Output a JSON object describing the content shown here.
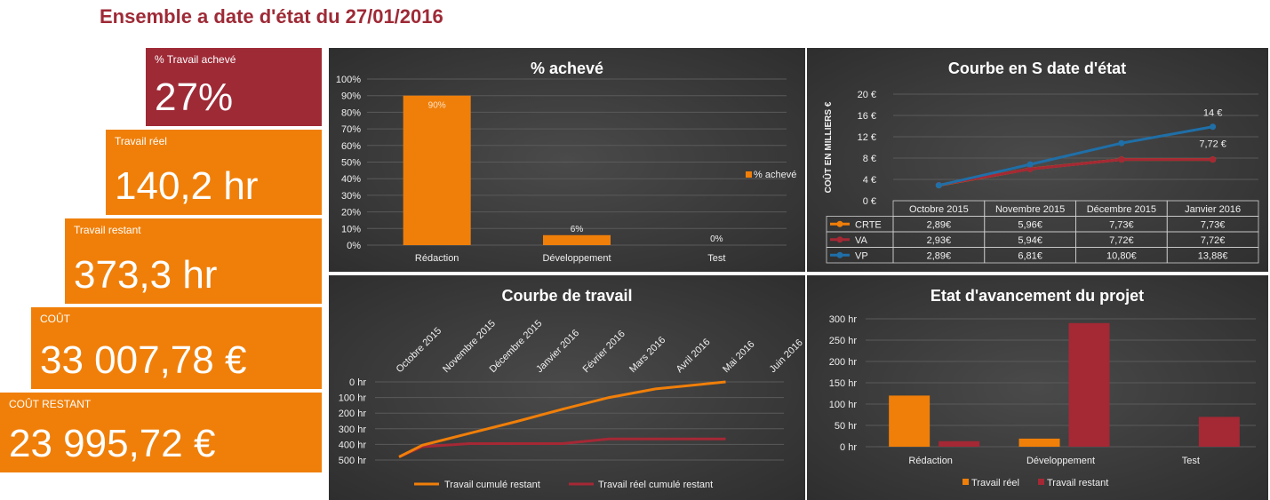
{
  "page_title": "Ensemble a date d'état du 27/01/2016",
  "kpis": [
    {
      "label": "% Travail achevé",
      "value": "27%"
    },
    {
      "label": "Travail réel",
      "value": "140,2 hr"
    },
    {
      "label": "Travail restant",
      "value": "373,3 hr"
    },
    {
      "label": "COÛT",
      "value": "33 007,78 €"
    },
    {
      "label": "COÛT RESTANT",
      "value": "23 995,72 €"
    }
  ],
  "colors": {
    "kpi_red": "#9e2a36",
    "kpi_orange": "#f07f09",
    "bar_orange": "#f07f09",
    "bar_red": "#a52835",
    "line_blue": "#1f6fa8",
    "panel_bg": "#3a3a3a"
  },
  "chart_data": [
    {
      "type": "bar",
      "title": "% achevé",
      "categories": [
        "Rédaction",
        "Développement",
        "Test"
      ],
      "series": [
        {
          "name": "% achevé",
          "values": [
            0.9,
            0.06,
            0.0
          ]
        }
      ],
      "data_labels": [
        "90%",
        "6%",
        "0%"
      ],
      "yticks": [
        "0%",
        "10%",
        "20%",
        "30%",
        "40%",
        "50%",
        "60%",
        "70%",
        "80%",
        "90%",
        "100%"
      ],
      "ylim": [
        0,
        1
      ],
      "legend": "right",
      "grid": true
    },
    {
      "type": "line",
      "title": "Courbe en S date d'état",
      "ylabel": "COÛT EN MILLIERS €",
      "categories": [
        "Octobre 2015",
        "Novembre 2015",
        "Décembre 2015",
        "Janvier 2016"
      ],
      "series": [
        {
          "name": "CRTE",
          "values": [
            2.89,
            5.96,
            7.73,
            7.73
          ],
          "table": [
            "2,89€",
            "5,96€",
            "7,73€",
            "7,73€"
          ]
        },
        {
          "name": "VA",
          "values": [
            2.93,
            5.94,
            7.72,
            7.72
          ],
          "table": [
            "2,93€",
            "5,94€",
            "7,72€",
            "7,72€"
          ]
        },
        {
          "name": "VP",
          "values": [
            2.89,
            6.81,
            10.8,
            13.88
          ],
          "table": [
            "2,89€",
            "6,81€",
            "10,80€",
            "13,88€"
          ]
        }
      ],
      "annotations": [
        "14 €",
        "7,72 €"
      ],
      "yticks": [
        "0 €",
        "4 €",
        "8 €",
        "12 €",
        "16 €",
        "20 €"
      ],
      "ylim": [
        0,
        20
      ],
      "legend": "data-table",
      "grid": true
    },
    {
      "type": "line",
      "title": "Courbe de travail",
      "categories": [
        "Octobre 2015",
        "Novembre 2015",
        "Décembre 2015",
        "Janvier 2016",
        "Février 2016",
        "Mars 2016",
        "Avril 2016",
        "Mai 2016",
        "Juin 2016"
      ],
      "series": [
        {
          "name": "Travail cumulé restant",
          "values": [
            480,
            405,
            330,
            255,
            175,
            100,
            45,
            0
          ],
          "x_offsets": [
            0,
            0.5,
            1.5,
            2.5,
            3.5,
            4.5,
            5.5,
            7
          ]
        },
        {
          "name": "Travail réel cumulé restant",
          "values": [
            480,
            415,
            395,
            395,
            395,
            365,
            365,
            365
          ],
          "x_offsets": [
            0,
            0.5,
            1.5,
            2.5,
            3.5,
            4.5,
            5.5,
            7
          ]
        }
      ],
      "yticks": [
        "0 hr",
        "100 hr",
        "200 hr",
        "300 hr",
        "400 hr",
        "500 hr"
      ],
      "ylim": [
        0,
        500
      ],
      "y_reversed": true,
      "legend": "bottom",
      "grid": true
    },
    {
      "type": "bar",
      "title": "Etat d'avancement du projet",
      "categories": [
        "Rédaction",
        "Développement",
        "Test"
      ],
      "series": [
        {
          "name": "Travail réel",
          "values": [
            120,
            19,
            0
          ]
        },
        {
          "name": "Travail restant",
          "values": [
            13,
            290,
            70
          ]
        }
      ],
      "yticks": [
        "0 hr",
        "50 hr",
        "100 hr",
        "150 hr",
        "200 hr",
        "250 hr",
        "300 hr"
      ],
      "ylim": [
        0,
        300
      ],
      "legend": "bottom",
      "grid": true
    }
  ]
}
